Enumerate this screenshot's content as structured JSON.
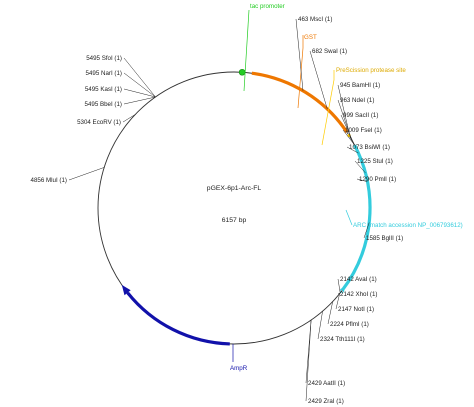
{
  "plasmid": {
    "name": "pGEX-6p1-Arc-FL",
    "length_label": "6157 bp",
    "length": 6157
  },
  "features": [
    {
      "label": "tac promoter",
      "color": "#22cc22",
      "type": "dot",
      "pos": 0
    },
    {
      "label": "GST",
      "color": "#ee7700",
      "type": "arc",
      "start": 70,
      "end": 900
    },
    {
      "label": "PreScission protease site",
      "color": "#ffcc00",
      "type": "small",
      "pos": 930
    },
    {
      "label": "ARC (match accession NP_006793612)",
      "color": "#33ccdd",
      "type": "arc",
      "start": 1010,
      "end": 2120
    },
    {
      "label": "AmpR",
      "color": "#1111aa",
      "type": "arc",
      "start": 3050,
      "end": 3900
    }
  ],
  "sites": [
    {
      "label": "463 MscI (1)",
      "pos": 463
    },
    {
      "label": "682 SwaI (1)",
      "pos": 682
    },
    {
      "label": "945 BamHI (1)",
      "pos": 945
    },
    {
      "label": "963 NdeI (1)",
      "pos": 963
    },
    {
      "label": "999 SacII (1)",
      "pos": 999
    },
    {
      "label": "1009 FseI (1)",
      "pos": 1009
    },
    {
      "label": "1073 BsiWI (1)",
      "pos": 1073
    },
    {
      "label": "1225 StuI (1)",
      "pos": 1225
    },
    {
      "label": "1290 PmlI (1)",
      "pos": 1290
    },
    {
      "label": "1585 BglII (1)",
      "pos": 1585
    },
    {
      "label": "2142 AvaI (1)",
      "pos": 2142
    },
    {
      "label": "2142 XhoI (1)",
      "pos": 2142
    },
    {
      "label": "2147 NotI (1)",
      "pos": 2147
    },
    {
      "label": "2224 PflmI (1)",
      "pos": 2224
    },
    {
      "label": "2324 Tth111I (1)",
      "pos": 2324
    },
    {
      "label": "2429 AatII (1)",
      "pos": 2429
    },
    {
      "label": "2429 ZraI (1)",
      "pos": 2429
    },
    {
      "label": "4856 MluI (1)",
      "pos": 4856
    },
    {
      "label": "5304 EcoRV (1)",
      "pos": 5304
    },
    {
      "label": "5495 BbeI (1)",
      "pos": 5495
    },
    {
      "label": "5495 KasI (1)",
      "pos": 5495
    },
    {
      "label": "5495 NarI (1)",
      "pos": 5495
    },
    {
      "label": "5495 SfoI (1)",
      "pos": 5495
    }
  ]
}
